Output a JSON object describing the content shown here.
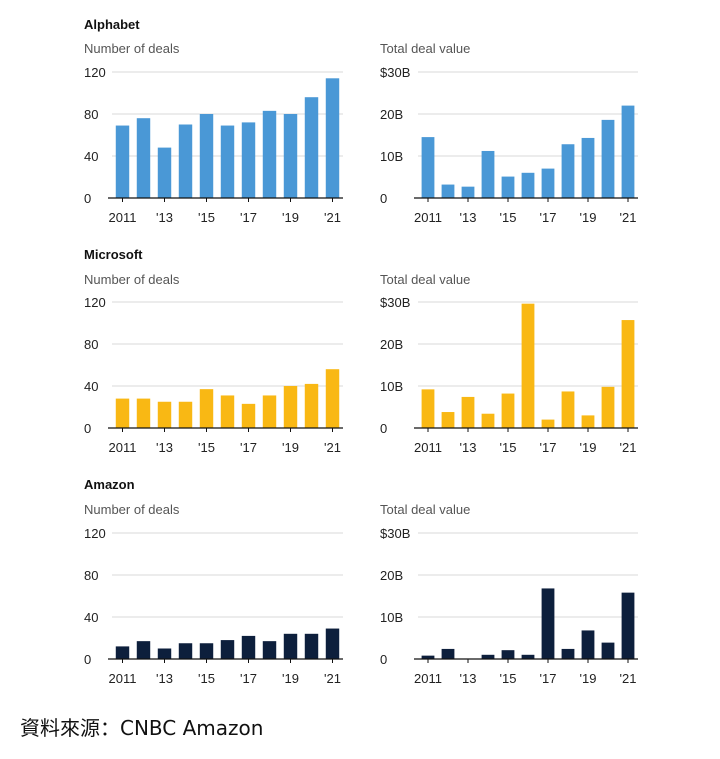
{
  "source": "資料來源：CNBC Amazon",
  "chart_data": [
    {
      "company": "Alphabet",
      "title": "Number of deals",
      "type": "bar",
      "color": "#4a98d6",
      "categories": [
        "2011",
        "2012",
        "2013",
        "2014",
        "2015",
        "2016",
        "2017",
        "2018",
        "2019",
        "2020",
        "2021"
      ],
      "values": [
        69,
        76,
        48,
        70,
        80,
        69,
        72,
        83,
        80,
        96,
        114
      ],
      "ylim": [
        0,
        120
      ],
      "yticks": [
        0,
        40,
        80,
        120
      ],
      "ytick_labels": [
        "0",
        "40",
        "80",
        "120"
      ],
      "xtick_labels": [
        "2011",
        "'13",
        "'15",
        "'17",
        "'19",
        "'21"
      ],
      "grid": true
    },
    {
      "company": "",
      "title": "Total deal value",
      "type": "bar",
      "color": "#4a98d6",
      "categories": [
        "2011",
        "2012",
        "2013",
        "2014",
        "2015",
        "2016",
        "2017",
        "2018",
        "2019",
        "2020",
        "2021"
      ],
      "values": [
        14.5,
        3.2,
        2.7,
        11.2,
        5.1,
        6.0,
        7.0,
        12.8,
        14.3,
        18.6,
        22.0
      ],
      "ylim": [
        0,
        30
      ],
      "yticks": [
        0,
        10,
        20,
        30
      ],
      "ytick_labels": [
        "0",
        "10B",
        "20B",
        "$30B"
      ],
      "xtick_labels": [
        "2011",
        "'13",
        "'15",
        "'17",
        "'19",
        "'21"
      ],
      "grid": true
    },
    {
      "company": "Microsoft",
      "title": "Number of deals",
      "type": "bar",
      "color": "#f9b814",
      "categories": [
        "2011",
        "2012",
        "2013",
        "2014",
        "2015",
        "2016",
        "2017",
        "2018",
        "2019",
        "2020",
        "2021"
      ],
      "values": [
        28,
        28,
        25,
        25,
        37,
        31,
        23,
        31,
        40,
        42,
        56
      ],
      "ylim": [
        0,
        120
      ],
      "yticks": [
        0,
        40,
        80,
        120
      ],
      "ytick_labels": [
        "0",
        "40",
        "80",
        "120"
      ],
      "xtick_labels": [
        "2011",
        "'13",
        "'15",
        "'17",
        "'19",
        "'21"
      ],
      "grid": true
    },
    {
      "company": "",
      "title": "Total deal value",
      "type": "bar",
      "color": "#f9b814",
      "categories": [
        "2011",
        "2012",
        "2013",
        "2014",
        "2015",
        "2016",
        "2017",
        "2018",
        "2019",
        "2020",
        "2021"
      ],
      "values": [
        9.2,
        3.8,
        7.4,
        3.4,
        8.2,
        29.6,
        2.0,
        8.7,
        3.0,
        9.8,
        25.7
      ],
      "ylim": [
        0,
        30
      ],
      "yticks": [
        0,
        10,
        20,
        30
      ],
      "ytick_labels": [
        "0",
        "10B",
        "20B",
        "$30B"
      ],
      "xtick_labels": [
        "2011",
        "'13",
        "'15",
        "'17",
        "'19",
        "'21"
      ],
      "grid": true
    },
    {
      "company": "Amazon",
      "title": "Number of deals",
      "type": "bar",
      "color": "#0d1f3c",
      "categories": [
        "2011",
        "2012",
        "2013",
        "2014",
        "2015",
        "2016",
        "2017",
        "2018",
        "2019",
        "2020",
        "2021"
      ],
      "values": [
        12,
        17,
        10,
        15,
        15,
        18,
        22,
        17,
        24,
        24,
        29
      ],
      "ylim": [
        0,
        120
      ],
      "yticks": [
        0,
        40,
        80,
        120
      ],
      "ytick_labels": [
        "0",
        "40",
        "80",
        "120"
      ],
      "xtick_labels": [
        "2011",
        "'13",
        "'15",
        "'17",
        "'19",
        "'21"
      ],
      "grid": true
    },
    {
      "company": "",
      "title": "Total deal value",
      "type": "bar",
      "color": "#0d1f3c",
      "categories": [
        "2011",
        "2012",
        "2013",
        "2014",
        "2015",
        "2016",
        "2017",
        "2018",
        "2019",
        "2020",
        "2021"
      ],
      "values": [
        0.8,
        2.4,
        0.0,
        1.0,
        2.1,
        1.0,
        16.8,
        2.4,
        6.8,
        3.9,
        15.8
      ],
      "ylim": [
        0,
        30
      ],
      "yticks": [
        0,
        10,
        20,
        30
      ],
      "ytick_labels": [
        "0",
        "10B",
        "20B",
        "$30B"
      ],
      "xtick_labels": [
        "2011",
        "'13",
        "'15",
        "'17",
        "'19",
        "'21"
      ],
      "grid": true
    }
  ]
}
